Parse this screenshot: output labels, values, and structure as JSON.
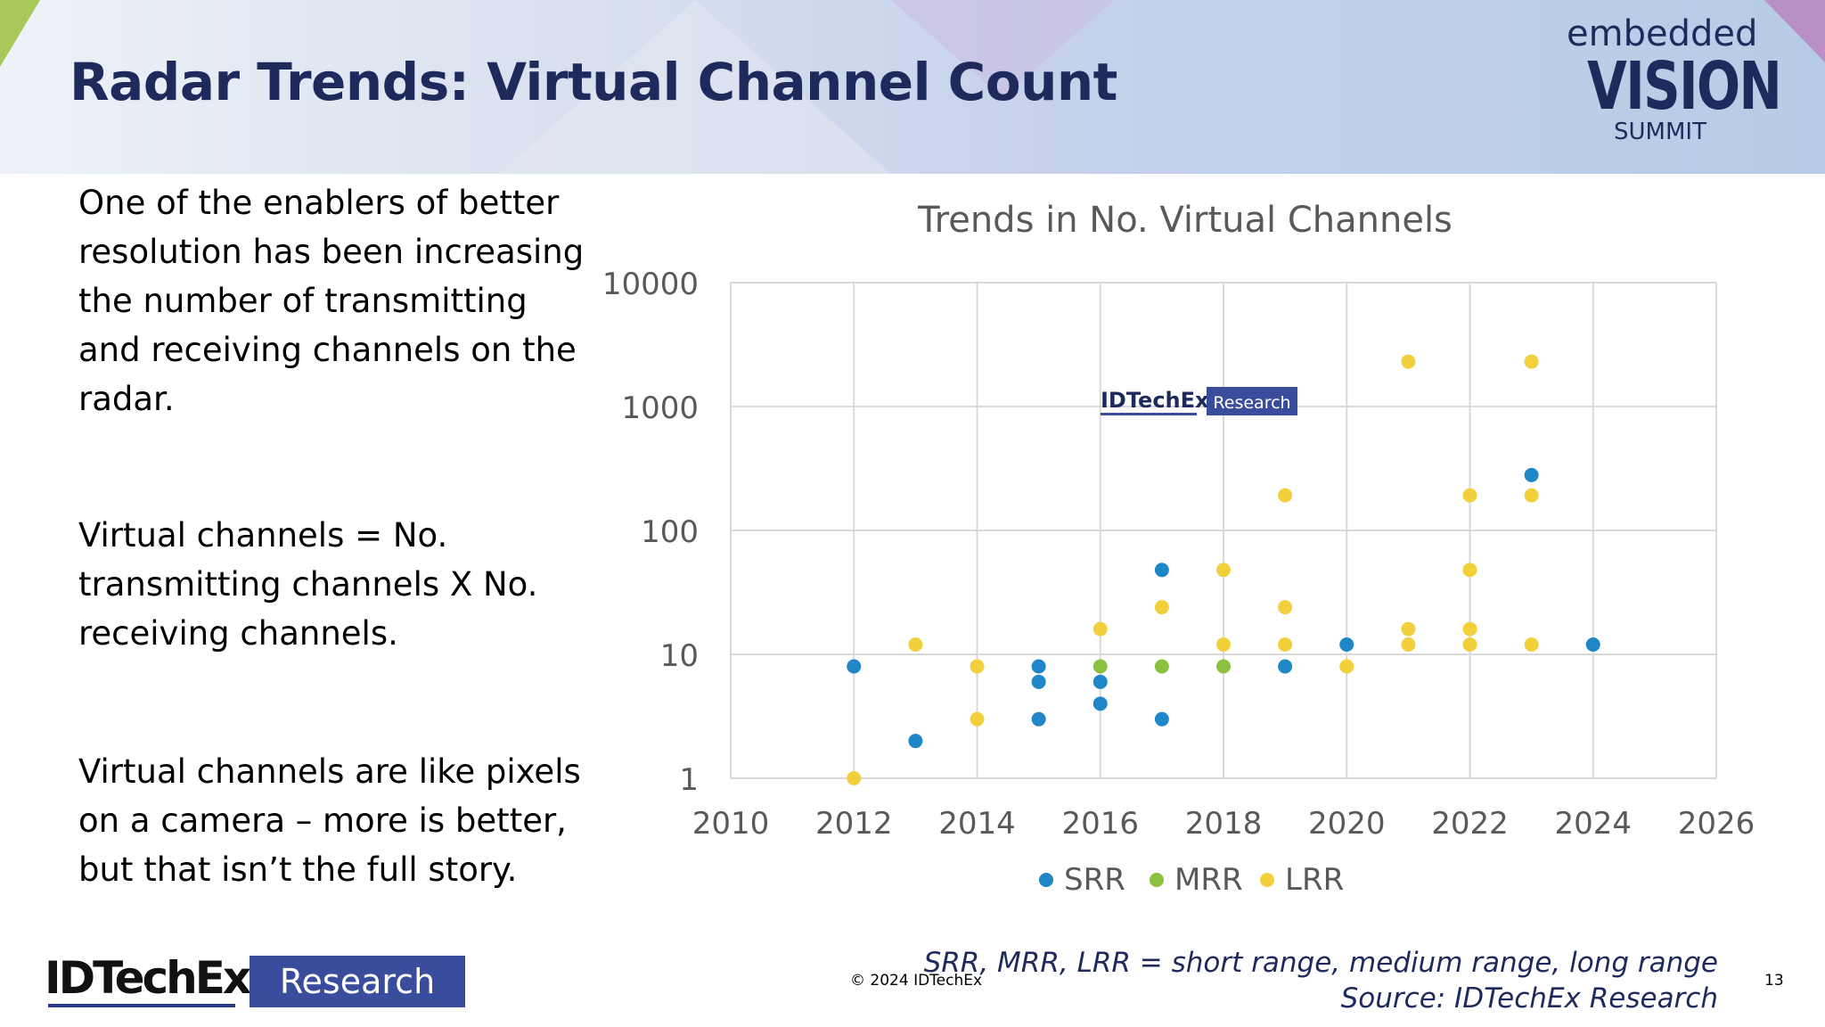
{
  "slide": {
    "title": "Radar Trends: Virtual Channel Count",
    "brand": {
      "line1": "embedded",
      "line2": "VISION",
      "line3": "SUMMIT"
    },
    "bullets": [
      "One of the enablers of better resolution has been increasing the number of transmitting and receiving channels on the radar.",
      "Virtual channels = No. transmitting channels X No. receiving channels.",
      "Virtual channels are like pixels on a camera – more is better, but that isn’t the full story."
    ],
    "footer": {
      "logo_name": "IDTechEx",
      "logo_box": "Research",
      "copyright": "© 2024 IDTechEx",
      "footnote_line1": "SRR, MRR, LRR = short range, medium range, long range",
      "footnote_line2": "Source: IDTechEx Research",
      "page_number": "13"
    },
    "colors": {
      "title": "#1f2a5c",
      "srr": "#1f86c8",
      "mrr": "#8cc040",
      "lrr": "#f2d03c",
      "brand_box": "#3a4c9c"
    }
  },
  "chart_data": {
    "type": "scatter",
    "title": "Trends in No. Virtual Channels",
    "xlabel": "",
    "ylabel": "",
    "x_scale": "linear",
    "y_scale": "log",
    "xlim": [
      2010,
      2026
    ],
    "ylim": [
      1,
      10000
    ],
    "x_ticks": [
      "2010",
      "2012",
      "2014",
      "2016",
      "2018",
      "2020",
      "2022",
      "2024",
      "2026"
    ],
    "y_ticks": [
      "1",
      "10",
      "100",
      "1000",
      "10000"
    ],
    "x_tick_values": [
      2010,
      2012,
      2014,
      2016,
      2018,
      2020,
      2022,
      2024,
      2026
    ],
    "y_tick_values": [
      1,
      10,
      100,
      1000,
      10000
    ],
    "grid": true,
    "legend_position": "bottom",
    "watermark": {
      "name": "IDTechEx",
      "box": "Research"
    },
    "series": [
      {
        "name": "SRR",
        "color": "#1f86c8",
        "points": [
          [
            2012,
            8
          ],
          [
            2013,
            2
          ],
          [
            2015,
            8
          ],
          [
            2015,
            6
          ],
          [
            2015,
            3
          ],
          [
            2016,
            6
          ],
          [
            2016,
            4
          ],
          [
            2017,
            48
          ],
          [
            2017,
            3
          ],
          [
            2019,
            8
          ],
          [
            2020,
            12
          ],
          [
            2023,
            280
          ],
          [
            2024,
            12
          ]
        ]
      },
      {
        "name": "MRR",
        "color": "#8cc040",
        "points": [
          [
            2016,
            8
          ],
          [
            2017,
            8
          ],
          [
            2018,
            8
          ]
        ]
      },
      {
        "name": "LRR",
        "color": "#f2d03c",
        "points": [
          [
            2012,
            1
          ],
          [
            2013,
            12
          ],
          [
            2014,
            8
          ],
          [
            2014,
            3
          ],
          [
            2016,
            16
          ],
          [
            2017,
            24
          ],
          [
            2018,
            48
          ],
          [
            2018,
            12
          ],
          [
            2019,
            192
          ],
          [
            2019,
            24
          ],
          [
            2019,
            12
          ],
          [
            2020,
            8
          ],
          [
            2021,
            2304
          ],
          [
            2021,
            16
          ],
          [
            2021,
            12
          ],
          [
            2022,
            192
          ],
          [
            2022,
            48
          ],
          [
            2022,
            16
          ],
          [
            2022,
            12
          ],
          [
            2023,
            2304
          ],
          [
            2023,
            192
          ],
          [
            2023,
            12
          ]
        ]
      }
    ]
  }
}
